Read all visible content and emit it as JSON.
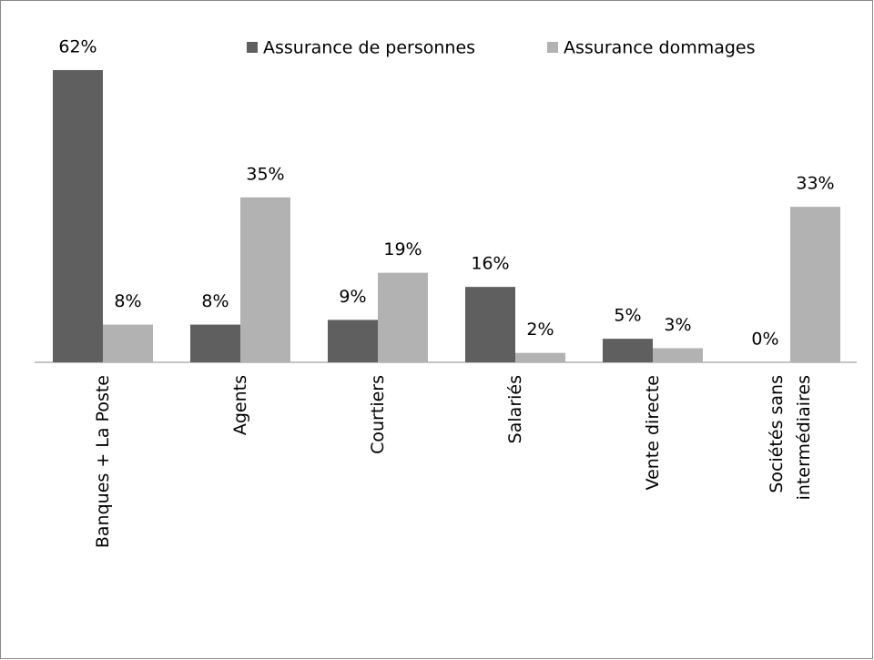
{
  "chart_data": {
    "type": "bar",
    "categories": [
      "Banques + La Poste",
      "Agents",
      "Courtiers",
      "Salariés",
      "Vente directe",
      "Sociétés sans\nintermédiaires"
    ],
    "series": [
      {
        "name": "Assurance de personnes",
        "color": "#5f5f5f",
        "values": [
          62,
          8,
          9,
          16,
          5,
          0
        ],
        "value_labels": [
          "62%",
          "8%",
          "9%",
          "16%",
          "5%",
          "0%"
        ]
      },
      {
        "name": "Assurance dommages",
        "color": "#b2b2b2",
        "values": [
          8,
          35,
          19,
          2,
          3,
          33
        ],
        "value_labels": [
          "8%",
          "35%",
          "19%",
          "2%",
          "3%",
          "33%"
        ]
      }
    ],
    "legend": "top"
  }
}
